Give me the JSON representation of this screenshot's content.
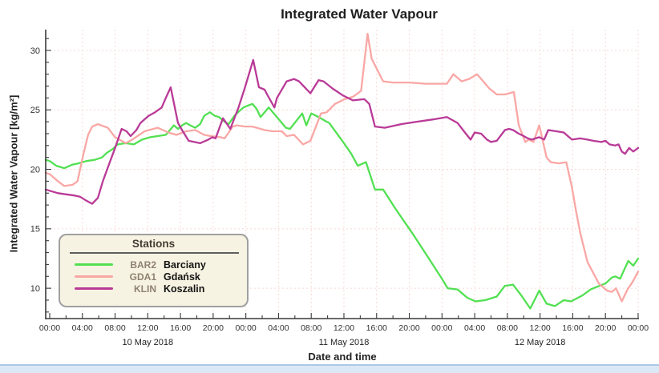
{
  "chart_data": {
    "type": "line",
    "title": "Integrated Water Vapour",
    "xlabel": "Date and time",
    "ylabel": "Integrated Water Vapour [kg/m²]",
    "x_unit": "hours since 2018-05-10 00:00",
    "xlim": [
      -0.5,
      72
    ],
    "ylim": [
      7.45,
      31.75
    ],
    "grid": {
      "color": "#f6d7d2",
      "dash": "2 3"
    },
    "axis_color": "#3a3a3a",
    "y_major_ticks": [
      10,
      15,
      20,
      25,
      30
    ],
    "y_minor_min": 8,
    "y_minor_max": 31,
    "x_major_step_hours": 4,
    "x_minor_step_hours": 2,
    "x_tick_labels": [
      "00:00",
      "04:00",
      "08:00",
      "12:00",
      "16:00",
      "20:00",
      "00:00",
      "04:00",
      "08:00",
      "12:00",
      "16:00",
      "20:00",
      "00:00",
      "04:00",
      "08:00",
      "12:00",
      "16:00",
      "20:00",
      "00:00"
    ],
    "day_labels": [
      {
        "t": 12,
        "label": "10 May 2018"
      },
      {
        "t": 36,
        "label": "11 May 2018"
      },
      {
        "t": 60,
        "label": "12 May 2018"
      }
    ],
    "legend": {
      "title": "Stations",
      "position": "bottom-left",
      "bg": "#f7f3e2",
      "border": "#a0a0a0"
    },
    "series": [
      {
        "code": "BAR2",
        "name": "Barciany",
        "color": "#52e052",
        "points": [
          [
            -0.5,
            20.8
          ],
          [
            0,
            20.7
          ],
          [
            0.8,
            20.3
          ],
          [
            1.8,
            20.1
          ],
          [
            2.8,
            20.4
          ],
          [
            3.5,
            20.5
          ],
          [
            4.5,
            20.7
          ],
          [
            5.5,
            20.8
          ],
          [
            6.4,
            21.0
          ],
          [
            7,
            21.4
          ],
          [
            7.7,
            21.7
          ],
          [
            8.3,
            22.1
          ],
          [
            9.3,
            22.2
          ],
          [
            10.3,
            22.1
          ],
          [
            11.3,
            22.5
          ],
          [
            12.3,
            22.7
          ],
          [
            13.2,
            22.8
          ],
          [
            14.2,
            22.9
          ],
          [
            15.2,
            23.7
          ],
          [
            15.7,
            23.4
          ],
          [
            16.2,
            23.7
          ],
          [
            16.7,
            23.9
          ],
          [
            17.2,
            23.7
          ],
          [
            17.8,
            23.5
          ],
          [
            18.4,
            23.8
          ],
          [
            18.9,
            24.5
          ],
          [
            19.6,
            24.8
          ],
          [
            20.2,
            24.5
          ],
          [
            20.7,
            24.4
          ],
          [
            21.4,
            24.0
          ],
          [
            21.9,
            23.8
          ],
          [
            22.6,
            24.5
          ],
          [
            23.2,
            24.9
          ],
          [
            23.7,
            25.2
          ],
          [
            24.4,
            25.4
          ],
          [
            24.8,
            25.5
          ],
          [
            25.3,
            25.1
          ],
          [
            25.8,
            24.4
          ],
          [
            26.8,
            25.2
          ],
          [
            27.3,
            24.8
          ],
          [
            27.8,
            24.4
          ],
          [
            28.9,
            23.5
          ],
          [
            29.4,
            23.4
          ],
          [
            30.9,
            24.7
          ],
          [
            31.4,
            23.7
          ],
          [
            32,
            24.7
          ],
          [
            32.9,
            24.4
          ],
          [
            33.9,
            24.0
          ],
          [
            34.2,
            23.9
          ],
          [
            35.9,
            22.3
          ],
          [
            36.9,
            21.3
          ],
          [
            37.7,
            20.3
          ],
          [
            38.7,
            20.6
          ],
          [
            39.8,
            18.3
          ],
          [
            40.8,
            18.3
          ],
          [
            42.3,
            16.7
          ],
          [
            44.5,
            14.5
          ],
          [
            46.2,
            12.7
          ],
          [
            47.9,
            10.9
          ],
          [
            48.7,
            10.0
          ],
          [
            49.9,
            9.9
          ],
          [
            51.1,
            9.2
          ],
          [
            52.1,
            8.9
          ],
          [
            53.3,
            9.0
          ],
          [
            54.7,
            9.3
          ],
          [
            55.7,
            10.2
          ],
          [
            56.7,
            10.3
          ],
          [
            57.7,
            9.4
          ],
          [
            58.8,
            8.3
          ],
          [
            59.9,
            9.8
          ],
          [
            60.8,
            8.7
          ],
          [
            61.8,
            8.5
          ],
          [
            62.9,
            9.0
          ],
          [
            63.8,
            8.9
          ],
          [
            65.2,
            9.4
          ],
          [
            66.2,
            9.9
          ],
          [
            66.9,
            10.1
          ],
          [
            68,
            10.4
          ],
          [
            68.8,
            10.9
          ],
          [
            69.2,
            11.0
          ],
          [
            69.8,
            10.8
          ],
          [
            70.8,
            12.3
          ],
          [
            71.4,
            11.9
          ],
          [
            72,
            12.5
          ]
        ]
      },
      {
        "code": "GDA1",
        "name": "Gdańsk",
        "color": "#f9a7a5",
        "points": [
          [
            -0.5,
            19.7
          ],
          [
            0,
            19.6
          ],
          [
            1,
            19.0
          ],
          [
            1.8,
            18.6
          ],
          [
            2.8,
            18.7
          ],
          [
            3.4,
            19.0
          ],
          [
            4.2,
            21.5
          ],
          [
            4.7,
            22.9
          ],
          [
            5.2,
            23.6
          ],
          [
            5.9,
            23.8
          ],
          [
            7.1,
            23.5
          ],
          [
            8,
            22.7
          ],
          [
            9.3,
            22.2
          ],
          [
            10.1,
            22.5
          ],
          [
            11.6,
            23.2
          ],
          [
            13.2,
            23.5
          ],
          [
            14.5,
            23.1
          ],
          [
            15.5,
            22.9
          ],
          [
            16.7,
            23.2
          ],
          [
            17.8,
            23.3
          ],
          [
            18.9,
            22.9
          ],
          [
            19.7,
            22.8
          ],
          [
            20.9,
            22.7
          ],
          [
            21.4,
            22.6
          ],
          [
            22.4,
            23.6
          ],
          [
            22.9,
            23.7
          ],
          [
            23.9,
            23.6
          ],
          [
            24.8,
            23.6
          ],
          [
            25.8,
            23.4
          ],
          [
            26.3,
            23.3
          ],
          [
            27.3,
            23.2
          ],
          [
            28.4,
            23.2
          ],
          [
            29,
            22.8
          ],
          [
            29.9,
            22.9
          ],
          [
            31,
            22.1
          ],
          [
            31.9,
            22.4
          ],
          [
            33.2,
            24.7
          ],
          [
            33.9,
            24.8
          ],
          [
            34.9,
            25.5
          ],
          [
            36.1,
            25.9
          ],
          [
            37.1,
            26.1
          ],
          [
            38.1,
            26.6
          ],
          [
            38.9,
            31.4
          ],
          [
            39.4,
            29.3
          ],
          [
            40.8,
            27.4
          ],
          [
            42,
            27.3
          ],
          [
            44,
            27.3
          ],
          [
            46,
            27.2
          ],
          [
            48.6,
            27.2
          ],
          [
            49.4,
            28.0
          ],
          [
            50.4,
            27.4
          ],
          [
            51.3,
            27.6
          ],
          [
            52.3,
            28.0
          ],
          [
            53.8,
            26.8
          ],
          [
            54.7,
            26.3
          ],
          [
            55.7,
            26.3
          ],
          [
            56.8,
            26.5
          ],
          [
            57.4,
            23.7
          ],
          [
            58.2,
            22.3
          ],
          [
            58.6,
            22.5
          ],
          [
            59.2,
            22.3
          ],
          [
            59.9,
            23.7
          ],
          [
            60.8,
            21.0
          ],
          [
            61.3,
            20.6
          ],
          [
            62.3,
            20.5
          ],
          [
            63.2,
            20.6
          ],
          [
            63.9,
            18.5
          ],
          [
            64.4,
            16.5
          ],
          [
            64.9,
            14.7
          ],
          [
            65.8,
            12.2
          ],
          [
            66.5,
            11.3
          ],
          [
            67.2,
            10.4
          ],
          [
            68.2,
            9.8
          ],
          [
            68.8,
            9.7
          ],
          [
            69.3,
            10.0
          ],
          [
            70,
            8.9
          ],
          [
            70.7,
            9.9
          ],
          [
            71.3,
            10.5
          ],
          [
            72,
            11.4
          ]
        ]
      },
      {
        "code": "KLIN",
        "name": "Koszalin",
        "color": "#b93a97",
        "points": [
          [
            -0.5,
            18.3
          ],
          [
            0,
            18.2
          ],
          [
            1,
            18.0
          ],
          [
            2,
            17.9
          ],
          [
            3,
            17.8
          ],
          [
            3.7,
            17.7
          ],
          [
            4.4,
            17.4
          ],
          [
            5.2,
            17.1
          ],
          [
            5.9,
            17.6
          ],
          [
            6.5,
            19.0
          ],
          [
            7.3,
            20.5
          ],
          [
            8,
            21.8
          ],
          [
            8.8,
            23.4
          ],
          [
            9.4,
            23.2
          ],
          [
            9.9,
            22.8
          ],
          [
            10.6,
            23.3
          ],
          [
            11.1,
            23.9
          ],
          [
            12.1,
            24.5
          ],
          [
            12.9,
            24.8
          ],
          [
            13.7,
            25.2
          ],
          [
            14.2,
            26.0
          ],
          [
            14.8,
            26.9
          ],
          [
            15.7,
            23.9
          ],
          [
            16.2,
            23.3
          ],
          [
            17,
            22.4
          ],
          [
            18.4,
            22.2
          ],
          [
            19.4,
            22.5
          ],
          [
            19.9,
            22.7
          ],
          [
            20.3,
            22.6
          ],
          [
            21.2,
            24.3
          ],
          [
            22.1,
            23.4
          ],
          [
            23.1,
            25.2
          ],
          [
            23.9,
            26.9
          ],
          [
            24.9,
            29.2
          ],
          [
            25.6,
            26.9
          ],
          [
            26.3,
            26.7
          ],
          [
            26.6,
            26.3
          ],
          [
            27.5,
            25.2
          ],
          [
            27.8,
            26.0
          ],
          [
            29,
            27.4
          ],
          [
            29.9,
            27.6
          ],
          [
            30.5,
            27.4
          ],
          [
            31.9,
            26.4
          ],
          [
            32.9,
            27.5
          ],
          [
            33.5,
            27.4
          ],
          [
            34.6,
            26.8
          ],
          [
            35.9,
            26.2
          ],
          [
            37.1,
            25.8
          ],
          [
            38.5,
            25.9
          ],
          [
            39.1,
            25.5
          ],
          [
            39.8,
            23.6
          ],
          [
            41,
            23.5
          ],
          [
            43,
            23.8
          ],
          [
            44.9,
            24.0
          ],
          [
            46.9,
            24.2
          ],
          [
            48.6,
            24.4
          ],
          [
            49.9,
            23.9
          ],
          [
            50.8,
            23.1
          ],
          [
            51.5,
            22.5
          ],
          [
            52,
            23.1
          ],
          [
            52.8,
            23.0
          ],
          [
            53.5,
            22.5
          ],
          [
            54,
            22.3
          ],
          [
            54.7,
            22.4
          ],
          [
            55.7,
            23.3
          ],
          [
            56.2,
            23.4
          ],
          [
            56.7,
            23.3
          ],
          [
            57.4,
            23.0
          ],
          [
            58,
            22.8
          ],
          [
            58.5,
            22.6
          ],
          [
            59,
            22.5
          ],
          [
            59.9,
            22.7
          ],
          [
            60.5,
            22.5
          ],
          [
            61,
            23.3
          ],
          [
            62,
            23.2
          ],
          [
            62.9,
            23.1
          ],
          [
            63.4,
            22.8
          ],
          [
            63.9,
            22.5
          ],
          [
            64.9,
            22.6
          ],
          [
            65.8,
            22.5
          ],
          [
            66.5,
            22.4
          ],
          [
            67.5,
            22.3
          ],
          [
            68,
            22.4
          ],
          [
            68.5,
            22.1
          ],
          [
            69.2,
            22.0
          ],
          [
            69.6,
            22.1
          ],
          [
            70,
            21.5
          ],
          [
            70.4,
            21.3
          ],
          [
            70.9,
            21.8
          ],
          [
            71.4,
            21.5
          ],
          [
            72,
            21.8
          ]
        ]
      }
    ]
  }
}
